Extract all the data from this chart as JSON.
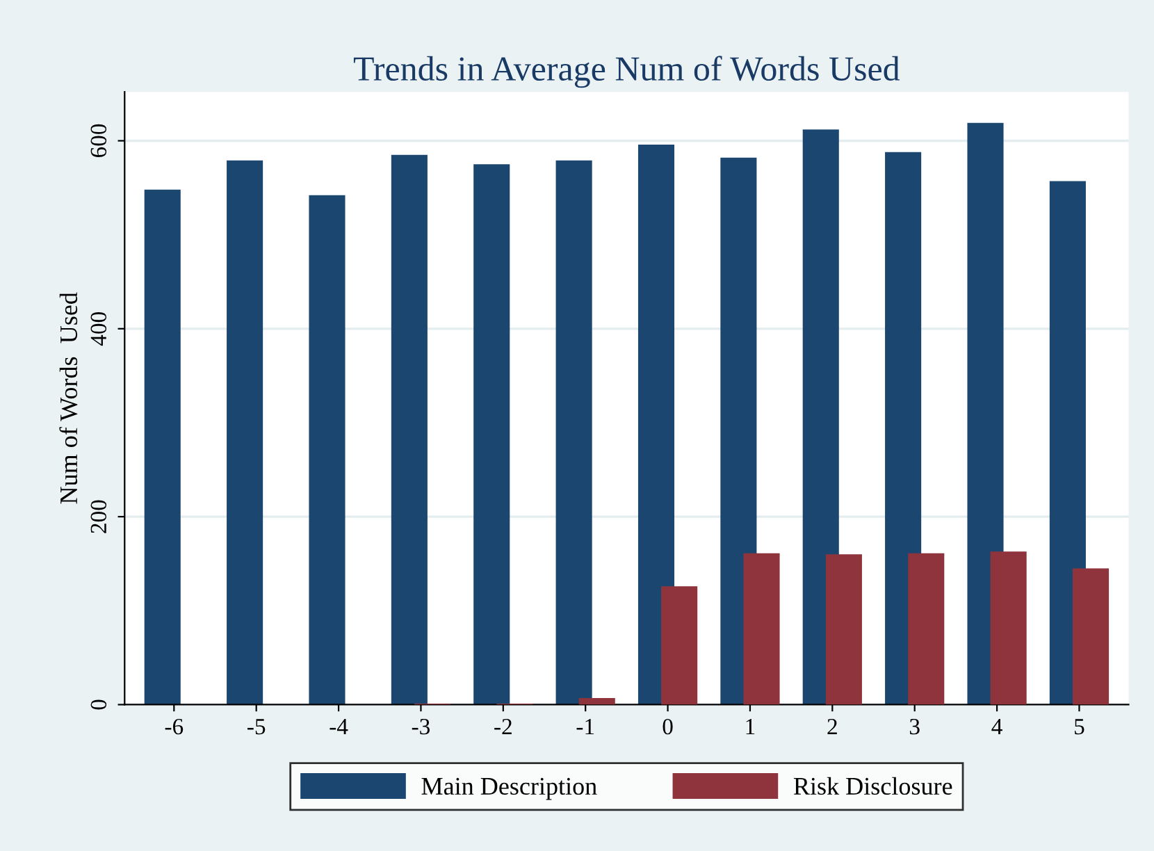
{
  "chart_data": {
    "type": "bar",
    "title": "Trends in Average Num of Words Used",
    "ylabel": "Num of Words  Used",
    "categories": [
      "-6",
      "-5",
      "-4",
      "-3",
      "-2",
      "-1",
      "0",
      "1",
      "2",
      "3",
      "4",
      "5"
    ],
    "series": [
      {
        "name": "Main Description",
        "color": "#1a4670",
        "values": [
          548,
          579,
          542,
          585,
          575,
          579,
          596,
          582,
          612,
          588,
          619,
          557
        ]
      },
      {
        "name": "Risk Disclosure",
        "color": "#8f343c",
        "values": [
          0,
          0,
          0,
          1,
          1,
          7,
          126,
          161,
          160,
          161,
          163,
          145
        ]
      }
    ],
    "ylim": [
      0,
      652
    ],
    "yticks": [
      0,
      200,
      400,
      600
    ],
    "grid": "y",
    "legend": "bottom"
  }
}
